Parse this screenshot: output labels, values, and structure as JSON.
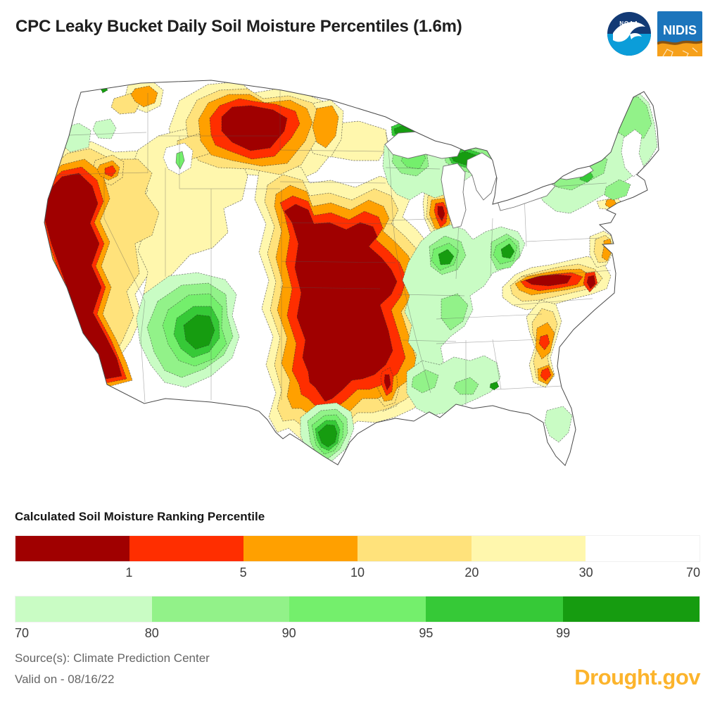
{
  "header": {
    "title": "CPC Leaky Bucket Daily Soil Moisture Percentiles (1.6m)",
    "noaa_label": "NOAA",
    "nidis_label": "NIDIS"
  },
  "legend": {
    "title": "Calculated Soil Moisture Ranking Percentile",
    "dry_scale": {
      "colors": [
        "#A00000",
        "#FF2E00",
        "#FFA000",
        "#FFE27B",
        "#FFF7AD",
        "#FFFFFF"
      ],
      "labels": [
        "1",
        "5",
        "10",
        "20",
        "30",
        "70"
      ],
      "label_positions_pct": [
        16.67,
        33.33,
        50,
        66.67,
        83.33,
        100
      ],
      "label_aligns": [
        "center",
        "center",
        "center",
        "center",
        "center",
        "right"
      ]
    },
    "wet_scale": {
      "colors": [
        "#C9FCC4",
        "#92F289",
        "#74EF6C",
        "#36C937",
        "#169C10"
      ],
      "labels": [
        "70",
        "80",
        "90",
        "95",
        "99"
      ],
      "label_positions_pct": [
        0,
        20,
        40,
        60,
        80
      ],
      "label_aligns": [
        "left",
        "center",
        "center",
        "center",
        "center"
      ]
    }
  },
  "map": {
    "background": "#ffffff",
    "notable_regions": [
      {
        "area": "California / Nevada",
        "percentile_class": "below 1 (driest)"
      },
      {
        "area": "Northern Plains (MT/ND)",
        "percentile_class": "below 1"
      },
      {
        "area": "Central & Southern Plains (NE/KS/OK/TX)",
        "percentile_class": "below 1"
      },
      {
        "area": "Carolinas",
        "percentile_class": "below 1"
      },
      {
        "area": "East Texas / Louisiana border",
        "percentile_class": "1-5"
      },
      {
        "area": "Four Corners (AZ/NM monsoon)",
        "percentile_class": "95-99 (wet)"
      },
      {
        "area": "South Texas",
        "percentile_class": "above 99"
      },
      {
        "area": "Upper Midwest / Great Lakes",
        "percentile_class": "80-99"
      },
      {
        "area": "Northeast / New England",
        "percentile_class": "70-95"
      },
      {
        "area": "Gulf Coast (LA/MS/AL)",
        "percentile_class": "70-80"
      },
      {
        "area": "Central Florida",
        "percentile_class": "70-80"
      }
    ]
  },
  "footer": {
    "source": "Source(s): Climate Prediction Center",
    "valid": "Valid on - 08/16/22",
    "brand": "Drought.gov",
    "brand_color": "#FCB42C"
  }
}
